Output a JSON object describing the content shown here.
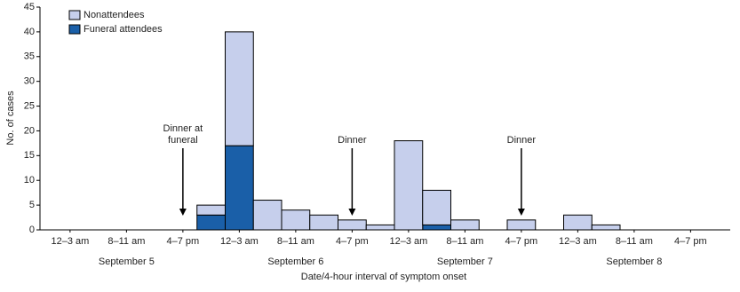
{
  "chart_data": {
    "type": "bar",
    "stacked": true,
    "x_label": "Date/4-hour interval of symptom onset",
    "y_label": "No. of cases",
    "categories": [
      "12–3 am",
      null,
      "8–11 am",
      null,
      "4–7 pm",
      null,
      "12–3 am",
      null,
      "8–11 am",
      null,
      "4–7 pm",
      null,
      "12–3 am",
      null,
      "8–11 am",
      null,
      "4–7 pm",
      null,
      "12–3 am",
      null,
      "8–11 am",
      null,
      "4–7 pm",
      null
    ],
    "day_labels": [
      "September 5",
      "September 6",
      "September 7",
      "September 8"
    ],
    "series": [
      {
        "name": "Funeral attendees",
        "color": "#1a5fa8",
        "values": [
          0,
          0,
          0,
          0,
          0,
          3,
          17,
          0,
          0,
          0,
          0,
          0,
          0,
          1,
          0,
          0,
          0,
          0,
          0,
          0,
          0,
          0,
          0,
          0
        ]
      },
      {
        "name": "Nonattendees",
        "color": "#c6cfec",
        "values": [
          0,
          0,
          0,
          0,
          0,
          2,
          23,
          6,
          4,
          3,
          2,
          1,
          18,
          7,
          2,
          0,
          2,
          0,
          3,
          1,
          0,
          0,
          0,
          0
        ]
      }
    ],
    "annotations": [
      {
        "lines": [
          "Dinner at",
          "funeral"
        ],
        "x": 4
      },
      {
        "lines": [
          "Dinner"
        ],
        "x": 10
      },
      {
        "lines": [
          "Dinner"
        ],
        "x": 16
      }
    ],
    "ylim": [
      0,
      45
    ],
    "yticks": [
      0,
      5,
      10,
      15,
      20,
      25,
      30,
      35,
      40,
      45
    ],
    "legend": "upper left"
  }
}
